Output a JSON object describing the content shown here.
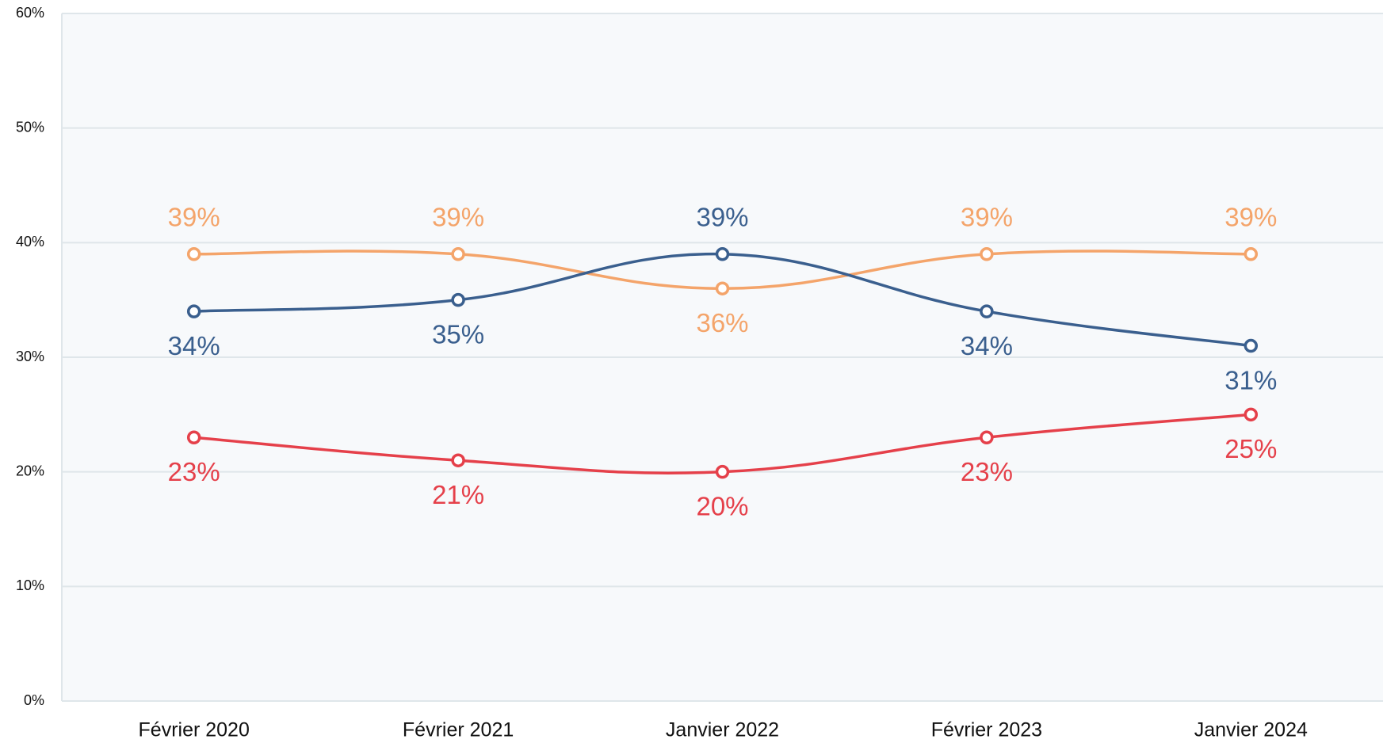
{
  "chart_data": {
    "type": "line",
    "categories": [
      "Février 2020",
      "Février 2021",
      "Janvier 2022",
      "Février 2023",
      "Janvier 2024"
    ],
    "series": [
      {
        "color": "#f4a46a",
        "values": [
          39,
          39,
          36,
          39,
          39
        ],
        "value_labels": [
          "39%",
          "39%",
          "36%",
          "39%",
          "39%"
        ]
      },
      {
        "color": "#3a5f8e",
        "values": [
          34,
          35,
          39,
          34,
          31
        ],
        "value_labels": [
          "34%",
          "35%",
          "39%",
          "34%",
          "31%"
        ]
      },
      {
        "color": "#e5404a",
        "values": [
          23,
          21,
          20,
          23,
          25
        ],
        "value_labels": [
          "23%",
          "21%",
          "20%",
          "23%",
          "25%"
        ]
      }
    ],
    "ylim": [
      0,
      60
    ],
    "yticks": [
      {
        "value": 0,
        "label": "0%"
      },
      {
        "value": 10,
        "label": "10%"
      },
      {
        "value": 20,
        "label": "20%"
      },
      {
        "value": 30,
        "label": "30%"
      },
      {
        "value": 40,
        "label": "40%"
      },
      {
        "value": 50,
        "label": "50%"
      },
      {
        "value": 60,
        "label": "60%"
      }
    ],
    "grid": true
  }
}
